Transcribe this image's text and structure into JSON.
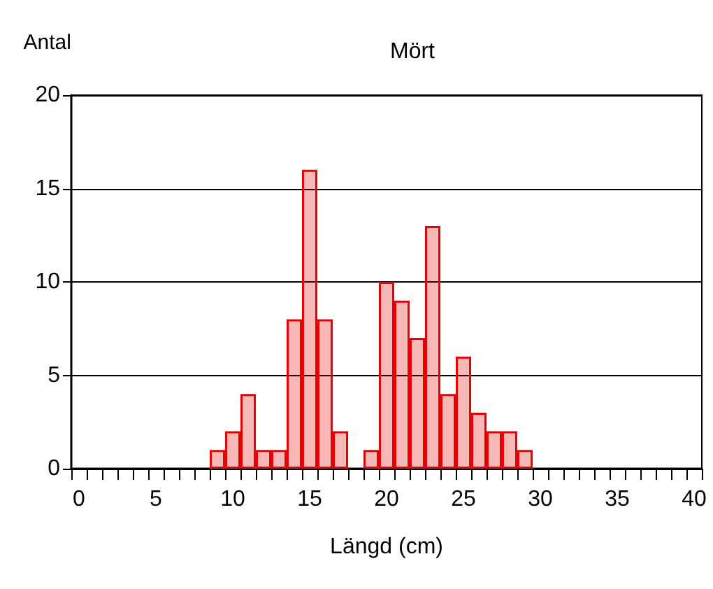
{
  "chart_data": {
    "type": "bar",
    "title": "Mört",
    "xlabel": "Längd (cm)",
    "ylabel": "Antal",
    "categories": [
      "0",
      null,
      null,
      null,
      null,
      "5",
      null,
      null,
      null,
      null,
      "10",
      null,
      null,
      null,
      null,
      "15",
      null,
      null,
      null,
      null,
      "20",
      null,
      null,
      null,
      null,
      "25",
      null,
      null,
      null,
      null,
      "30",
      null,
      null,
      null,
      null,
      "35",
      null,
      null,
      null,
      null,
      "40"
    ],
    "values": [
      0,
      0,
      0,
      0,
      0,
      0,
      0,
      0,
      0,
      1,
      2,
      4,
      1,
      1,
      8,
      16,
      8,
      2,
      0,
      1,
      10,
      9,
      7,
      13,
      4,
      6,
      3,
      2,
      2,
      1,
      0,
      0,
      0,
      0,
      0,
      0,
      0,
      0,
      0,
      0,
      0
    ],
    "color": "#e60000",
    "ylim": [
      0,
      20
    ],
    "yticks": [
      0,
      5,
      10,
      15,
      20
    ],
    "grid": "y"
  }
}
